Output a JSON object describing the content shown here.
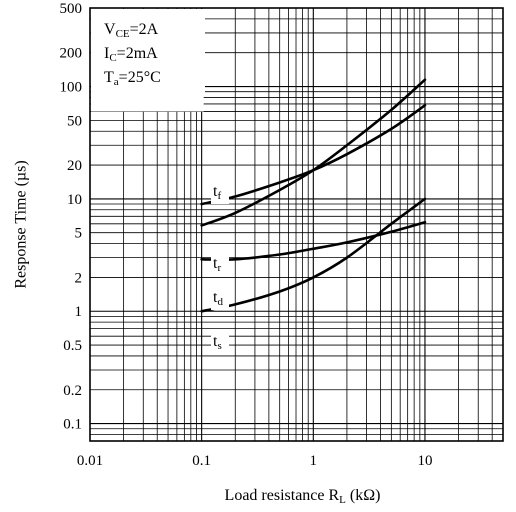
{
  "chart_data": {
    "type": "line",
    "title": "",
    "xlabel": {
      "text": "Load resistance R",
      "sub": "L",
      "unit": " (kΩ)"
    },
    "ylabel": "Response  Time (µs)",
    "xscale": "log",
    "yscale": "log",
    "xlim": [
      0.01,
      50
    ],
    "ylim": [
      0.07,
      500
    ],
    "grid": true,
    "xticks": [
      {
        "value": 0.01,
        "label": "0.01"
      },
      {
        "value": 0.1,
        "label": "0.1"
      },
      {
        "value": 1,
        "label": "1"
      },
      {
        "value": 10,
        "label": "10"
      }
    ],
    "yticks": [
      {
        "value": 0.1,
        "label": "0.1"
      },
      {
        "value": 0.2,
        "label": "0.2"
      },
      {
        "value": 0.5,
        "label": "0.5"
      },
      {
        "value": 1,
        "label": "1"
      },
      {
        "value": 2,
        "label": "2"
      },
      {
        "value": 5,
        "label": "5"
      },
      {
        "value": 10,
        "label": "10"
      },
      {
        "value": 20,
        "label": "20"
      },
      {
        "value": 50,
        "label": "50"
      },
      {
        "value": 100,
        "label": "100"
      },
      {
        "value": 200,
        "label": "200"
      },
      {
        "value": 500,
        "label": "500"
      }
    ],
    "conditions": [
      {
        "main": "V",
        "sub": "CE",
        "rest": "=2A"
      },
      {
        "main": "I",
        "sub": "C",
        "rest": "=2mA"
      },
      {
        "main": "T",
        "sub": "a",
        "rest": "=25°C"
      }
    ],
    "series": [
      {
        "label_main": "t",
        "label_sub": "f",
        "x": [
          0.1,
          0.2,
          0.5,
          1,
          2,
          5,
          10
        ],
        "y": [
          9,
          10.5,
          14,
          18,
          25,
          42,
          68
        ]
      },
      {
        "label_main": "t",
        "label_sub": "r",
        "x": [
          0.1,
          0.2,
          0.5,
          1,
          2,
          5,
          10
        ],
        "y": [
          5.8,
          7.5,
          12,
          18,
          30,
          62,
          115
        ]
      },
      {
        "label_main": "t",
        "label_sub": "d",
        "x": [
          0.1,
          0.2,
          0.5,
          1,
          2,
          5,
          10
        ],
        "y": [
          2.9,
          2.9,
          3.2,
          3.6,
          4.1,
          5.1,
          6.2
        ]
      },
      {
        "label_main": "t",
        "label_sub": "s",
        "x": [
          0.1,
          0.2,
          0.5,
          1,
          2,
          5,
          10
        ],
        "y": [
          1,
          1.15,
          1.5,
          2,
          3,
          6,
          10
        ]
      }
    ]
  }
}
